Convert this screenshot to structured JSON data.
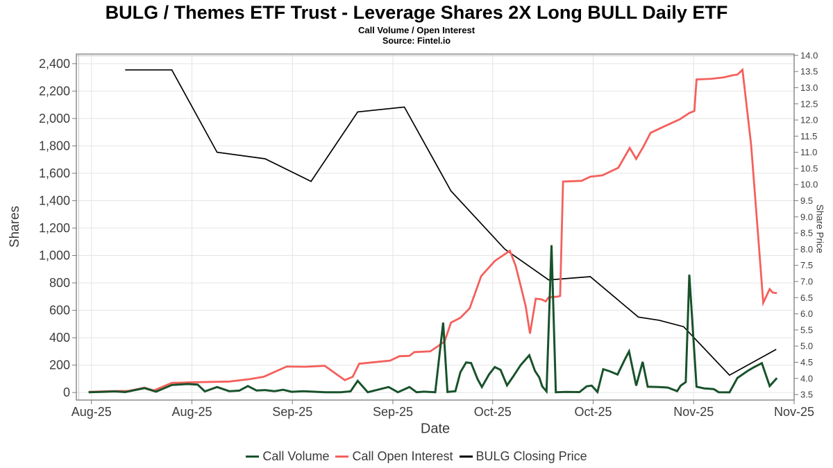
{
  "header": {
    "title": "BULG / Themes ETF Trust - Leverage Shares 2X Long BULL Daily ETF",
    "subtitle": "Call Volume / Open Interest",
    "source": "Source: Fintel.io"
  },
  "chart_data": {
    "type": "line",
    "grid": true,
    "legend_position": "bottom",
    "x_axis": {
      "title": "Date",
      "ticks": [
        {
          "pos": 0.021,
          "label": "Aug-25"
        },
        {
          "pos": 0.161,
          "label": "Aug-25"
        },
        {
          "pos": 0.301,
          "label": "Sep-25"
        },
        {
          "pos": 0.441,
          "label": "Sep-25"
        },
        {
          "pos": 0.58,
          "label": "Oct-25"
        },
        {
          "pos": 0.72,
          "label": "Oct-25"
        },
        {
          "pos": 0.86,
          "label": "Nov-25"
        },
        {
          "pos": 1.0,
          "label": "Nov-25"
        }
      ]
    },
    "y_left": {
      "title": "Shares",
      "domain": [
        -55,
        2470
      ],
      "ticks": [
        {
          "v": 0,
          "label": "0"
        },
        {
          "v": 200,
          "label": "200"
        },
        {
          "v": 400,
          "label": "400"
        },
        {
          "v": 600,
          "label": "600"
        },
        {
          "v": 800,
          "label": "800"
        },
        {
          "v": 1000,
          "label": "1,000"
        },
        {
          "v": 1200,
          "label": "1,200"
        },
        {
          "v": 1400,
          "label": "1,400"
        },
        {
          "v": 1600,
          "label": "1,600"
        },
        {
          "v": 1800,
          "label": "1,800"
        },
        {
          "v": 2000,
          "label": "2,000"
        },
        {
          "v": 2200,
          "label": "2,200"
        },
        {
          "v": 2400,
          "label": "2,400"
        }
      ]
    },
    "y_right": {
      "title": "Share Price",
      "domain": [
        3.33,
        14.04
      ],
      "ticks": [
        {
          "v": 3.5,
          "label": "3.5"
        },
        {
          "v": 4.0,
          "label": "4.0"
        },
        {
          "v": 4.5,
          "label": "4.5"
        },
        {
          "v": 5.0,
          "label": "5.0"
        },
        {
          "v": 5.5,
          "label": "5.5"
        },
        {
          "v": 6.0,
          "label": "6.0"
        },
        {
          "v": 6.5,
          "label": "6.5"
        },
        {
          "v": 7.0,
          "label": "7.0"
        },
        {
          "v": 7.5,
          "label": "7.5"
        },
        {
          "v": 8.0,
          "label": "8.0"
        },
        {
          "v": 8.5,
          "label": "8.5"
        },
        {
          "v": 9.0,
          "label": "9.0"
        },
        {
          "v": 9.5,
          "label": "9.5"
        },
        {
          "v": 10.0,
          "label": "10.0"
        },
        {
          "v": 10.5,
          "label": "10.5"
        },
        {
          "v": 11.0,
          "label": "11.0"
        },
        {
          "v": 11.5,
          "label": "11.5"
        },
        {
          "v": 12.0,
          "label": "12.0"
        },
        {
          "v": 12.5,
          "label": "12.5"
        },
        {
          "v": 13.0,
          "label": "13.0"
        },
        {
          "v": 13.5,
          "label": "13.5"
        },
        {
          "v": 14.0,
          "label": "14.0"
        }
      ]
    },
    "colors": {
      "grid": "#e4e4e4",
      "border": "#7a7a7a",
      "tick_text": "#3c3c3c"
    },
    "series": [
      {
        "name": "BULG Closing Price",
        "color": "#000000",
        "axis": "right",
        "width": 1.7,
        "points": [
          [
            0.068,
            13.55
          ],
          [
            0.133,
            13.55
          ],
          [
            0.196,
            11.0
          ],
          [
            0.263,
            10.8
          ],
          [
            0.327,
            10.1
          ],
          [
            0.392,
            12.25
          ],
          [
            0.457,
            12.4
          ],
          [
            0.522,
            9.8
          ],
          [
            0.597,
            8.0
          ],
          [
            0.658,
            7.05
          ],
          [
            0.716,
            7.15
          ],
          [
            0.783,
            5.9
          ],
          [
            0.812,
            5.8
          ],
          [
            0.846,
            5.6
          ],
          [
            0.91,
            4.1
          ],
          [
            0.975,
            4.9
          ]
        ]
      },
      {
        "name": "Call Open Interest",
        "color": "#f4605c",
        "axis": "left",
        "width": 2.8,
        "points": [
          [
            0.017,
            5
          ],
          [
            0.048,
            10
          ],
          [
            0.073,
            12
          ],
          [
            0.095,
            35
          ],
          [
            0.108,
            15
          ],
          [
            0.133,
            70
          ],
          [
            0.164,
            75
          ],
          [
            0.213,
            80
          ],
          [
            0.242,
            98
          ],
          [
            0.261,
            115
          ],
          [
            0.293,
            190
          ],
          [
            0.319,
            188
          ],
          [
            0.346,
            195
          ],
          [
            0.374,
            90
          ],
          [
            0.385,
            115
          ],
          [
            0.394,
            210
          ],
          [
            0.416,
            222
          ],
          [
            0.437,
            233
          ],
          [
            0.45,
            265
          ],
          [
            0.464,
            268
          ],
          [
            0.471,
            295
          ],
          [
            0.493,
            300
          ],
          [
            0.503,
            335
          ],
          [
            0.513,
            372
          ],
          [
            0.522,
            510
          ],
          [
            0.535,
            545
          ],
          [
            0.548,
            615
          ],
          [
            0.564,
            850
          ],
          [
            0.583,
            960
          ],
          [
            0.597,
            1010
          ],
          [
            0.604,
            1035
          ],
          [
            0.612,
            925
          ],
          [
            0.619,
            780
          ],
          [
            0.626,
            630
          ],
          [
            0.632,
            430
          ],
          [
            0.64,
            685
          ],
          [
            0.648,
            680
          ],
          [
            0.654,
            665
          ],
          [
            0.658,
            695
          ],
          [
            0.671,
            700
          ],
          [
            0.674,
            705
          ],
          [
            0.678,
            1540
          ],
          [
            0.704,
            1545
          ],
          [
            0.716,
            1575
          ],
          [
            0.733,
            1585
          ],
          [
            0.755,
            1640
          ],
          [
            0.771,
            1785
          ],
          [
            0.78,
            1705
          ],
          [
            0.79,
            1795
          ],
          [
            0.8,
            1895
          ],
          [
            0.82,
            1945
          ],
          [
            0.841,
            1995
          ],
          [
            0.854,
            2040
          ],
          [
            0.861,
            2055
          ],
          [
            0.864,
            2285
          ],
          [
            0.885,
            2290
          ],
          [
            0.902,
            2300
          ],
          [
            0.914,
            2315
          ],
          [
            0.921,
            2320
          ],
          [
            0.928,
            2355
          ],
          [
            0.94,
            1810
          ],
          [
            0.95,
            1135
          ],
          [
            0.957,
            655
          ],
          [
            0.966,
            755
          ],
          [
            0.97,
            730
          ],
          [
            0.976,
            725
          ]
        ]
      },
      {
        "name": "Call Volume",
        "color": "#18522b",
        "axis": "left",
        "width": 3,
        "points": [
          [
            0.017,
            2
          ],
          [
            0.039,
            5
          ],
          [
            0.053,
            8
          ],
          [
            0.068,
            3
          ],
          [
            0.095,
            32
          ],
          [
            0.111,
            6
          ],
          [
            0.133,
            55
          ],
          [
            0.155,
            62
          ],
          [
            0.169,
            58
          ],
          [
            0.179,
            8
          ],
          [
            0.196,
            40
          ],
          [
            0.213,
            10
          ],
          [
            0.227,
            14
          ],
          [
            0.239,
            47
          ],
          [
            0.251,
            15
          ],
          [
            0.263,
            18
          ],
          [
            0.276,
            10
          ],
          [
            0.288,
            20
          ],
          [
            0.3,
            5
          ],
          [
            0.316,
            10
          ],
          [
            0.334,
            5
          ],
          [
            0.348,
            2
          ],
          [
            0.368,
            2
          ],
          [
            0.382,
            8
          ],
          [
            0.392,
            85
          ],
          [
            0.406,
            2
          ],
          [
            0.435,
            40
          ],
          [
            0.448,
            2
          ],
          [
            0.464,
            40
          ],
          [
            0.474,
            2
          ],
          [
            0.484,
            6
          ],
          [
            0.5,
            2
          ],
          [
            0.511,
            510
          ],
          [
            0.517,
            4
          ],
          [
            0.528,
            10
          ],
          [
            0.535,
            148
          ],
          [
            0.543,
            220
          ],
          [
            0.55,
            215
          ],
          [
            0.559,
            98
          ],
          [
            0.565,
            40
          ],
          [
            0.575,
            132
          ],
          [
            0.583,
            186
          ],
          [
            0.591,
            165
          ],
          [
            0.6,
            52
          ],
          [
            0.609,
            120
          ],
          [
            0.619,
            200
          ],
          [
            0.631,
            272
          ],
          [
            0.639,
            157
          ],
          [
            0.645,
            110
          ],
          [
            0.649,
            45
          ],
          [
            0.655,
            8
          ],
          [
            0.662,
            1075
          ],
          [
            0.668,
            2
          ],
          [
            0.682,
            4
          ],
          [
            0.701,
            3
          ],
          [
            0.711,
            45
          ],
          [
            0.718,
            50
          ],
          [
            0.726,
            4
          ],
          [
            0.734,
            170
          ],
          [
            0.743,
            155
          ],
          [
            0.754,
            131
          ],
          [
            0.764,
            240
          ],
          [
            0.77,
            300
          ],
          [
            0.78,
            50
          ],
          [
            0.789,
            224
          ],
          [
            0.796,
            42
          ],
          [
            0.812,
            40
          ],
          [
            0.824,
            36
          ],
          [
            0.837,
            10
          ],
          [
            0.842,
            50
          ],
          [
            0.849,
            76
          ],
          [
            0.854,
            860
          ],
          [
            0.864,
            42
          ],
          [
            0.875,
            30
          ],
          [
            0.888,
            25
          ],
          [
            0.895,
            2
          ],
          [
            0.91,
            1
          ],
          [
            0.921,
            106
          ],
          [
            0.935,
            157
          ],
          [
            0.943,
            182
          ],
          [
            0.955,
            214
          ],
          [
            0.966,
            47
          ],
          [
            0.976,
            106
          ]
        ]
      }
    ],
    "legend_order": [
      2,
      1,
      0
    ]
  }
}
